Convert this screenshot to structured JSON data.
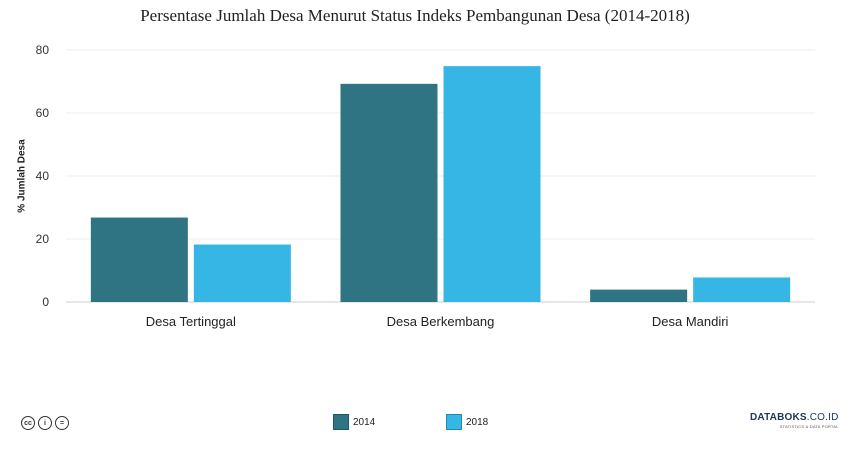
{
  "chart_data": {
    "type": "bar",
    "title": "Persentase Jumlah Desa Menurut Status Indeks Pembangunan Desa (2014-2018)",
    "ylabel": "% Jumlah Desa",
    "xlabel": "",
    "categories": [
      "Desa Tertinggal",
      "Desa Berkembang",
      "Desa Mandiri"
    ],
    "series": [
      {
        "name": "2014",
        "values": [
          26.81,
          69.26,
          3.93
        ],
        "color": "#2e7483"
      },
      {
        "name": "2018",
        "values": [
          18.25,
          74.88,
          7.79
        ],
        "color": "#35b6e4"
      }
    ],
    "ylim": [
      0,
      80
    ],
    "yticks": [
      0,
      20,
      40,
      60,
      80
    ],
    "grid": true,
    "legend_position": "bottom-center"
  },
  "footer": {
    "brand_bold": "DATABOKS",
    "brand_suffix": ".CO.ID",
    "brand_tagline": "STATISTICS & DATA PORTAL",
    "license_icons": [
      "cc-icon",
      "by-icon",
      "nd-icon"
    ],
    "license_glyphs": [
      "cc",
      "i",
      "="
    ]
  }
}
